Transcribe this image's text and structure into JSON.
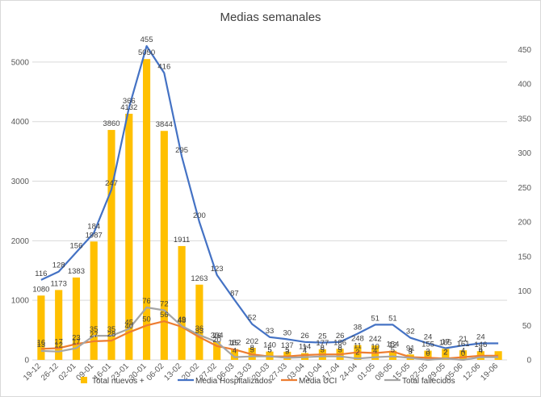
{
  "chart_data": {
    "type": "bar+line",
    "title": "Medias semanales",
    "categories": [
      "19-12",
      "26-12",
      "02-01",
      "09-01",
      "16-01",
      "23-01",
      "30-01",
      "06-02",
      "13-02",
      "20-02",
      "27-02",
      "06-03",
      "13-03",
      "20-03",
      "27-03",
      "03-04",
      "10-04",
      "17-04",
      "24-04",
      "01-05",
      "08-05",
      "15-05",
      "22-05",
      "29-05",
      "05-06",
      "12-06",
      "19-06"
    ],
    "x_tick_labels": [
      "19-12",
      "26-12",
      "02-01",
      "09-01",
      "16-01",
      "23-01",
      "30-01",
      "06-02",
      "13-02",
      "20-02",
      "27-02",
      "06-03",
      "13-03",
      "20-03",
      "27-03",
      "03-04",
      "10-04",
      "17-04",
      "24-04",
      "01-05",
      "08-05",
      "15-05",
      "22-05",
      "29-05",
      "05-06",
      "12-06",
      "19-06"
    ],
    "y_left": {
      "min": 0,
      "max": 5500,
      "ticks": [
        0,
        1000,
        2000,
        3000,
        4000,
        5000
      ]
    },
    "y_right": {
      "min": 0,
      "max": 475,
      "ticks": [
        0,
        50,
        100,
        150,
        200,
        250,
        300,
        350,
        400,
        450
      ]
    },
    "grid": true,
    "legend_position": "bottom",
    "series": [
      {
        "name": "Total nuevos + ",
        "type": "bar",
        "axis": "left",
        "color": "#FFC000",
        "values": [
          1080,
          1173,
          1383,
          1987,
          3860,
          4132,
          5050,
          3844,
          1911,
          1263,
          304,
          182,
          202,
          140,
          137,
          114,
          177,
          186,
          248,
          242,
          154,
          91,
          155,
          185,
          161,
          146,
          146
        ],
        "labels": [
          "1080",
          "1173",
          "1383",
          "1987",
          "3860",
          "4132",
          "5050",
          "3844",
          "1911",
          "1263",
          "304",
          "182",
          "202",
          "140",
          "137",
          "114",
          "177",
          "186",
          "248",
          "242",
          "154",
          "91",
          "155",
          "185",
          "161",
          "146",
          ""
        ]
      },
      {
        "name": "Media Hospitalizados",
        "type": "line",
        "axis": "right",
        "color": "#4472C4",
        "values": [
          116,
          128,
          156,
          184,
          247,
          366,
          455,
          416,
          295,
          200,
          123,
          87,
          52,
          33,
          30,
          26,
          25,
          26,
          38,
          51,
          51,
          32,
          24,
          17,
          21,
          24,
          24
        ],
        "labels": [
          "116",
          "128",
          "156",
          "184",
          "247",
          "366",
          "455",
          "416",
          "295",
          "200",
          "123",
          "87",
          "52",
          "33",
          "30",
          "26",
          "25",
          "26",
          "38",
          "51",
          "51",
          "32",
          "24",
          "17",
          "21",
          "24",
          ""
        ]
      },
      {
        "name": "Media UCI",
        "type": "line",
        "axis": "right",
        "color": "#ED7D31",
        "values": [
          16,
          17,
          23,
          27,
          28,
          40,
          50,
          56,
          48,
          33,
          20,
          15,
          8,
          5,
          5,
          7,
          8,
          8,
          11,
          10,
          12,
          4,
          3,
          2,
          4,
          6,
          6
        ],
        "labels": [
          "16",
          "17",
          "23",
          "27",
          "28",
          "40",
          "50",
          "56",
          "48",
          "33",
          "20",
          "15",
          "8",
          "5",
          "5",
          "7",
          "8",
          "8",
          "11",
          "10",
          "12",
          "4",
          "3",
          "2",
          "4",
          "6",
          ""
        ]
      },
      {
        "name": "Total fallecidos",
        "type": "line",
        "axis": "right",
        "color": "#A5A5A5",
        "values": [
          13,
          12,
          17,
          35,
          35,
          45,
          76,
          72,
          49,
          36,
          26,
          4,
          5,
          5,
          3,
          4,
          5,
          5,
          2,
          4,
          5,
          3,
          0,
          2,
          0,
          4,
          4
        ],
        "labels": [
          "13",
          "12",
          "17",
          "35",
          "35",
          "45",
          "76",
          "72",
          "49",
          "36",
          "26",
          "4",
          "5",
          "5",
          "3",
          "4",
          "5",
          "5",
          "2",
          "4",
          "5",
          "3",
          "0",
          "2",
          "0",
          "4",
          ""
        ]
      }
    ]
  }
}
